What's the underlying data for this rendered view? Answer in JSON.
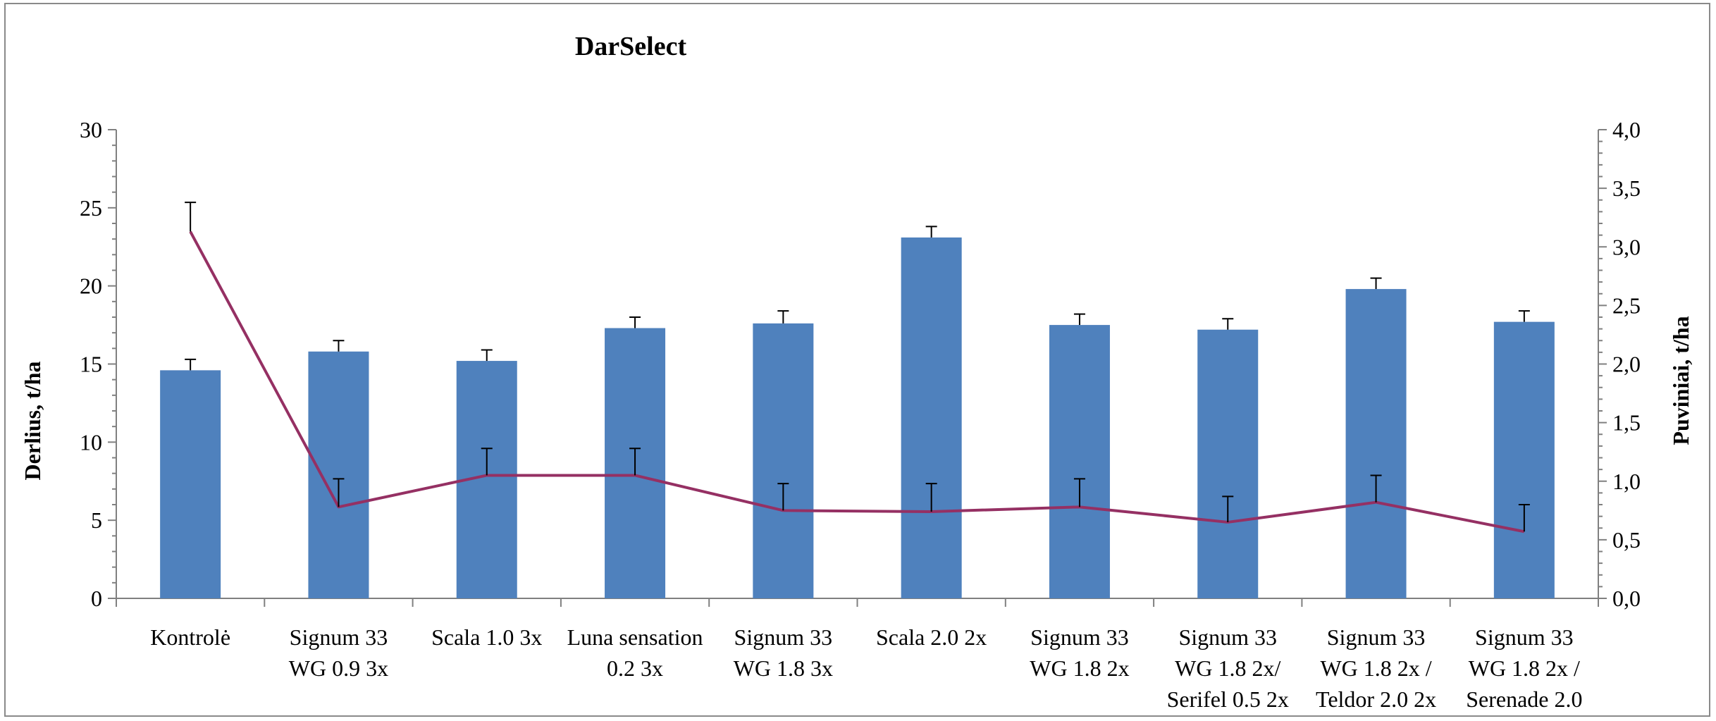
{
  "chart_data": {
    "type": "bar",
    "title": "DarSelect",
    "categories": [
      [
        "Kontrolė"
      ],
      [
        "Signum 33",
        "WG 0.9 3x"
      ],
      [
        "Scala 1.0 3x"
      ],
      [
        "Luna sensation",
        "0.2 3x"
      ],
      [
        "Signum 33",
        "WG 1.8 3x"
      ],
      [
        "Scala 2.0 2x"
      ],
      [
        "Signum 33",
        "WG 1.8 2x"
      ],
      [
        "Signum 33",
        "WG 1.8 2x/",
        "Serifel 0.5 2x"
      ],
      [
        "Signum 33",
        "WG 1.8 2x /",
        "Teldor 2.0 2x"
      ],
      [
        "Signum 33",
        "WG 1.8 2x /",
        "Serenade 2.0"
      ]
    ],
    "y_left": {
      "label": "Derlius, t/ha",
      "min": 0,
      "max": 30,
      "major_step": 5,
      "minor_step": 1,
      "tick_labels": [
        "0",
        "5",
        "10",
        "15",
        "20",
        "25",
        "30"
      ]
    },
    "y_right": {
      "label": "Puviniai, t/ha",
      "min": 0,
      "max": 4,
      "major_step": 0.5,
      "minor_step": 0.1,
      "tick_labels": [
        "0,0",
        "0,5",
        "1,0",
        "1,5",
        "2,0",
        "2,5",
        "3,0",
        "3,5",
        "4,0"
      ]
    },
    "series": [
      {
        "type": "bar",
        "axis": "left",
        "color": "#4f81bd",
        "values": [
          14.6,
          15.8,
          15.2,
          17.3,
          17.6,
          23.1,
          17.5,
          17.2,
          19.8,
          17.7
        ],
        "error": [
          0.7,
          0.7,
          0.7,
          0.7,
          0.8,
          0.7,
          0.7,
          0.7,
          0.7,
          0.7
        ]
      },
      {
        "type": "line",
        "axis": "right",
        "color": "#953063",
        "values": [
          3.13,
          0.78,
          1.05,
          1.05,
          0.75,
          0.74,
          0.78,
          0.65,
          0.82,
          0.57
        ],
        "error": [
          0.25,
          0.24,
          0.23,
          0.23,
          0.23,
          0.24,
          0.24,
          0.22,
          0.23,
          0.23
        ]
      }
    ],
    "legend": "none",
    "grid": false
  }
}
